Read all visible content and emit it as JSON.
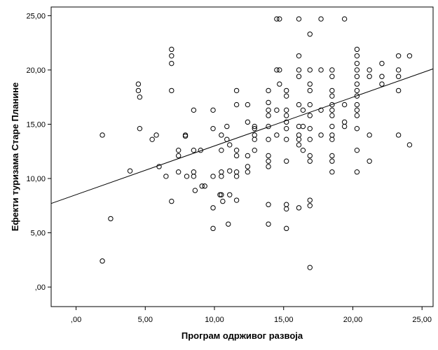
{
  "chart_data": {
    "type": "scatter",
    "xlabel": "Програм одрживог развоја",
    "ylabel": "Ефекти туризама Старе Планине",
    "xlim": [
      -1.8,
      25.8
    ],
    "ylim": [
      -1.8,
      25.8
    ],
    "xticks": [
      0,
      5,
      10,
      15,
      20,
      25
    ],
    "yticks": [
      0,
      5,
      10,
      15,
      20,
      25
    ],
    "xtick_labels": [
      ",00",
      "5,00",
      "10,00",
      "15,00",
      "20,00",
      "25,00"
    ],
    "ytick_labels": [
      ",00",
      "5,00",
      "10,00",
      "15,00",
      "20,00",
      "25,00"
    ],
    "grid": false,
    "fit_line": {
      "x": [
        -1.8,
        25.8
      ],
      "y": [
        7.7,
        20.1
      ]
    },
    "points": [
      [
        1.9,
        14.0
      ],
      [
        1.9,
        2.4
      ],
      [
        2.5,
        6.3
      ],
      [
        3.9,
        10.7
      ],
      [
        4.5,
        18.7
      ],
      [
        4.5,
        18.1
      ],
      [
        4.6,
        17.5
      ],
      [
        4.6,
        14.6
      ],
      [
        5.5,
        13.6
      ],
      [
        5.8,
        14.0
      ],
      [
        6.0,
        11.1
      ],
      [
        6.5,
        10.2
      ],
      [
        6.9,
        21.9
      ],
      [
        6.9,
        21.3
      ],
      [
        6.9,
        20.6
      ],
      [
        6.9,
        18.1
      ],
      [
        6.9,
        7.9
      ],
      [
        7.4,
        12.6
      ],
      [
        7.4,
        12.1
      ],
      [
        7.4,
        10.6
      ],
      [
        7.9,
        14.0
      ],
      [
        7.9,
        13.9
      ],
      [
        8.0,
        10.2
      ],
      [
        8.5,
        16.3
      ],
      [
        8.5,
        12.6
      ],
      [
        8.5,
        10.6
      ],
      [
        8.5,
        10.2
      ],
      [
        8.6,
        8.9
      ],
      [
        9.0,
        12.6
      ],
      [
        9.1,
        9.3
      ],
      [
        9.3,
        9.3
      ],
      [
        9.9,
        16.3
      ],
      [
        9.9,
        14.6
      ],
      [
        9.9,
        10.2
      ],
      [
        9.9,
        7.3
      ],
      [
        9.9,
        5.4
      ],
      [
        10.4,
        8.5
      ],
      [
        10.5,
        8.5
      ],
      [
        10.5,
        14.0
      ],
      [
        10.5,
        12.6
      ],
      [
        10.5,
        10.6
      ],
      [
        10.5,
        10.2
      ],
      [
        10.6,
        7.9
      ],
      [
        10.9,
        14.8
      ],
      [
        10.9,
        13.6
      ],
      [
        11.0,
        5.8
      ],
      [
        11.1,
        13.1
      ],
      [
        11.1,
        10.7
      ],
      [
        11.1,
        8.5
      ],
      [
        11.6,
        18.1
      ],
      [
        11.6,
        16.8
      ],
      [
        11.6,
        12.6
      ],
      [
        11.6,
        12.1
      ],
      [
        11.6,
        10.6
      ],
      [
        11.6,
        10.2
      ],
      [
        11.6,
        8.0
      ],
      [
        12.4,
        16.8
      ],
      [
        12.4,
        15.2
      ],
      [
        12.4,
        12.1
      ],
      [
        12.4,
        11.1
      ],
      [
        12.4,
        10.6
      ],
      [
        12.9,
        14.8
      ],
      [
        12.9,
        14.6
      ],
      [
        12.9,
        14.0
      ],
      [
        12.9,
        13.6
      ],
      [
        12.9,
        12.6
      ],
      [
        13.9,
        18.1
      ],
      [
        13.9,
        17.0
      ],
      [
        13.9,
        16.3
      ],
      [
        13.9,
        15.8
      ],
      [
        13.9,
        14.8
      ],
      [
        13.9,
        13.6
      ],
      [
        13.9,
        12.1
      ],
      [
        13.9,
        11.6
      ],
      [
        13.9,
        11.1
      ],
      [
        13.9,
        7.6
      ],
      [
        13.9,
        5.8
      ],
      [
        14.5,
        24.7
      ],
      [
        14.5,
        20.0
      ],
      [
        14.5,
        16.3
      ],
      [
        14.5,
        14.0
      ],
      [
        14.7,
        24.7
      ],
      [
        14.7,
        20.0
      ],
      [
        14.7,
        18.7
      ],
      [
        15.2,
        18.1
      ],
      [
        15.2,
        17.6
      ],
      [
        15.2,
        16.3
      ],
      [
        15.2,
        15.8
      ],
      [
        15.2,
        15.2
      ],
      [
        15.2,
        14.6
      ],
      [
        15.2,
        13.6
      ],
      [
        15.2,
        11.6
      ],
      [
        15.2,
        7.6
      ],
      [
        15.2,
        7.2
      ],
      [
        15.2,
        5.4
      ],
      [
        16.1,
        24.7
      ],
      [
        16.1,
        21.3
      ],
      [
        16.1,
        20.0
      ],
      [
        16.1,
        19.4
      ],
      [
        16.1,
        16.8
      ],
      [
        16.1,
        14.8
      ],
      [
        16.1,
        14.0
      ],
      [
        16.1,
        13.6
      ],
      [
        16.1,
        13.1
      ],
      [
        16.1,
        7.3
      ],
      [
        16.4,
        16.3
      ],
      [
        16.4,
        14.8
      ],
      [
        16.4,
        12.6
      ],
      [
        16.9,
        23.3
      ],
      [
        16.9,
        20.0
      ],
      [
        16.9,
        18.7
      ],
      [
        16.9,
        18.1
      ],
      [
        16.9,
        16.8
      ],
      [
        16.9,
        15.8
      ],
      [
        16.9,
        14.6
      ],
      [
        16.9,
        13.6
      ],
      [
        16.9,
        12.1
      ],
      [
        16.9,
        11.6
      ],
      [
        16.9,
        8.0
      ],
      [
        16.9,
        7.5
      ],
      [
        16.9,
        1.8
      ],
      [
        17.7,
        24.7
      ],
      [
        17.7,
        20.0
      ],
      [
        17.7,
        16.3
      ],
      [
        17.7,
        14.0
      ],
      [
        18.5,
        20.0
      ],
      [
        18.5,
        19.4
      ],
      [
        18.5,
        18.1
      ],
      [
        18.5,
        17.6
      ],
      [
        18.5,
        16.8
      ],
      [
        18.5,
        16.3
      ],
      [
        18.5,
        15.8
      ],
      [
        18.5,
        14.8
      ],
      [
        18.5,
        14.0
      ],
      [
        18.5,
        13.6
      ],
      [
        18.5,
        12.1
      ],
      [
        18.5,
        11.6
      ],
      [
        18.5,
        10.6
      ],
      [
        19.4,
        24.7
      ],
      [
        19.4,
        16.8
      ],
      [
        19.4,
        15.2
      ],
      [
        19.4,
        14.8
      ],
      [
        20.3,
        21.9
      ],
      [
        20.3,
        21.3
      ],
      [
        20.3,
        20.6
      ],
      [
        20.3,
        20.0
      ],
      [
        20.3,
        19.4
      ],
      [
        20.3,
        18.7
      ],
      [
        20.3,
        18.1
      ],
      [
        20.3,
        17.6
      ],
      [
        20.3,
        16.8
      ],
      [
        20.3,
        16.3
      ],
      [
        20.3,
        15.8
      ],
      [
        20.3,
        14.6
      ],
      [
        20.3,
        12.6
      ],
      [
        20.3,
        10.6
      ],
      [
        21.2,
        20.0
      ],
      [
        21.2,
        19.4
      ],
      [
        21.2,
        14.0
      ],
      [
        21.2,
        11.6
      ],
      [
        22.1,
        20.6
      ],
      [
        22.1,
        19.4
      ],
      [
        22.1,
        18.7
      ],
      [
        23.3,
        21.3
      ],
      [
        23.3,
        20.0
      ],
      [
        23.3,
        19.4
      ],
      [
        23.3,
        18.1
      ],
      [
        23.3,
        14.0
      ],
      [
        24.1,
        21.3
      ],
      [
        24.1,
        13.1
      ]
    ]
  }
}
